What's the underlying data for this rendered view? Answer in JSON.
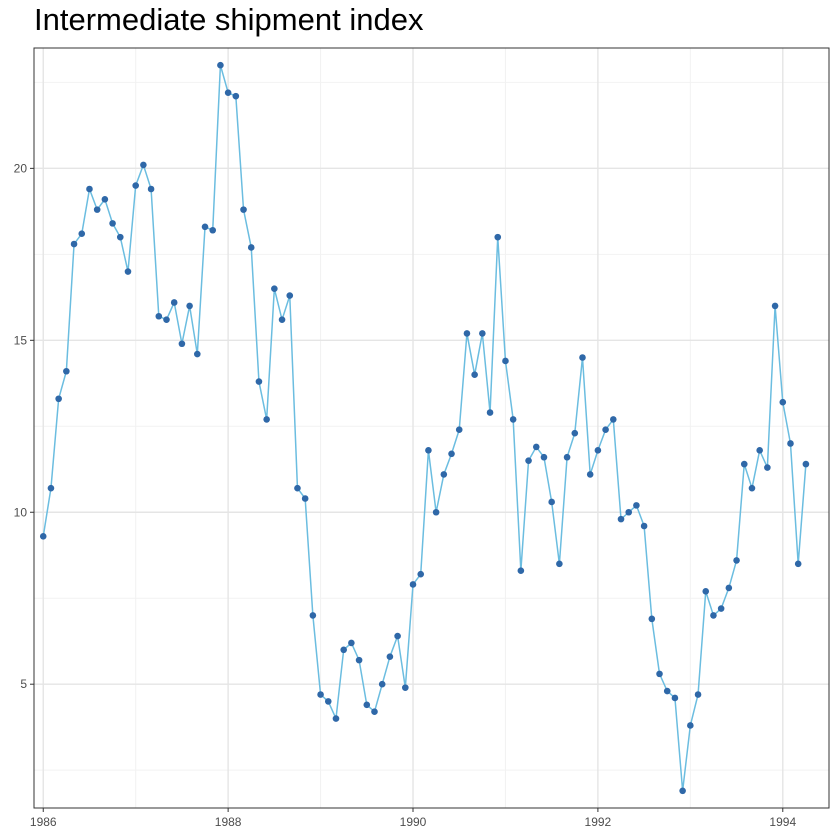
{
  "chart_data": {
    "type": "line",
    "title": "Intermediate shipment index",
    "xlabel": "",
    "ylabel": "",
    "xlim": [
      1985.9,
      1994.5
    ],
    "ylim": [
      1.4,
      23.5
    ],
    "x_ticks": [
      1986,
      1988,
      1990,
      1992,
      1994
    ],
    "x_tick_labels": [
      "1986",
      "1988",
      "1990",
      "1992",
      "1994"
    ],
    "y_ticks": [
      5,
      10,
      15,
      20
    ],
    "y_tick_labels": [
      "5",
      "10",
      "15",
      "20"
    ],
    "grid": true,
    "legend": "none",
    "line_color": "#6BBDE0",
    "point_color": "#2F68A8",
    "series": [
      {
        "start": 1986.0,
        "step": 0.08333333,
        "values": [
          9.3,
          10.7,
          13.3,
          14.1,
          17.8,
          18.1,
          19.4,
          18.8,
          19.1,
          18.4,
          18.0,
          17.0,
          19.5,
          20.1,
          19.4,
          15.7,
          15.6,
          16.1,
          14.9,
          16.0,
          14.6,
          18.3,
          18.2,
          23.0,
          22.2,
          22.1,
          18.8,
          17.7,
          13.8,
          12.7,
          16.5,
          15.6,
          16.3,
          10.7,
          10.4,
          7.0,
          4.7,
          4.5,
          4.0,
          6.0,
          6.2,
          5.7,
          4.4,
          4.2,
          5.0,
          5.8,
          6.4,
          4.9,
          7.9,
          8.2,
          11.8,
          10.0,
          11.1,
          11.7,
          12.4,
          15.2,
          14.0,
          15.2,
          12.9,
          18.0,
          14.4,
          12.7,
          8.3,
          11.5,
          11.9,
          11.6,
          10.3,
          8.5,
          11.6,
          12.3,
          14.5,
          11.1,
          11.8,
          12.4,
          12.7,
          9.8,
          10.0,
          10.2,
          9.6,
          6.9,
          5.3,
          4.8,
          4.6,
          1.9,
          3.8,
          4.7,
          7.7,
          7.0,
          7.2,
          7.8,
          8.6,
          11.4,
          10.7,
          11.8,
          11.3,
          16.0,
          13.2,
          12.0,
          8.5,
          11.4
        ]
      }
    ]
  }
}
